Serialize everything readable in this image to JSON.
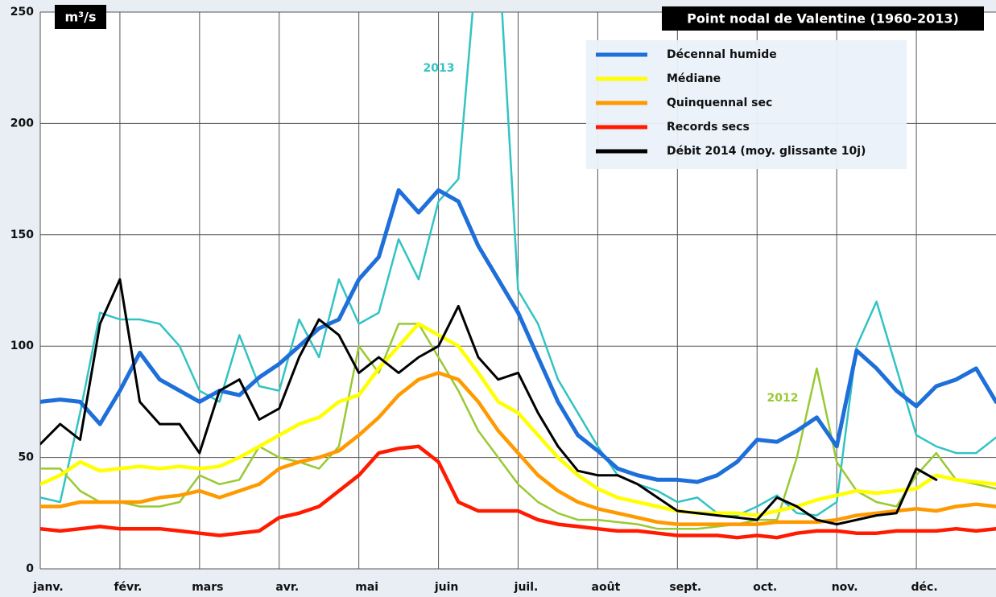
{
  "chart_data": {
    "type": "line",
    "title": "Point nodal de Valentine (1960-2013)",
    "y_label": "m³/s",
    "xlim": [
      0,
      12
    ],
    "xticks": [
      {
        "value": 0,
        "label": "janv."
      },
      {
        "value": 1,
        "label": "févr."
      },
      {
        "value": 2,
        "label": "mars"
      },
      {
        "value": 3,
        "label": "avr."
      },
      {
        "value": 4,
        "label": "mai"
      },
      {
        "value": 5,
        "label": "juin"
      },
      {
        "value": 6,
        "label": "juil."
      },
      {
        "value": 7,
        "label": "août"
      },
      {
        "value": 8,
        "label": "sept."
      },
      {
        "value": 9,
        "label": "oct."
      },
      {
        "value": 10,
        "label": "nov."
      },
      {
        "value": 11,
        "label": "déc."
      }
    ],
    "ylim": [
      0,
      250
    ],
    "yticks": [
      0,
      50,
      100,
      150,
      200,
      250
    ],
    "grid": true,
    "x": [
      0,
      0.25,
      0.5,
      0.75,
      1,
      1.25,
      1.5,
      1.75,
      2,
      2.25,
      2.5,
      2.75,
      3,
      3.25,
      3.5,
      3.75,
      4,
      4.25,
      4.5,
      4.75,
      5,
      5.25,
      5.5,
      5.75,
      6,
      6.25,
      6.5,
      6.75,
      7,
      7.25,
      7.5,
      7.75,
      8,
      8.25,
      8.5,
      8.75,
      9,
      9.25,
      9.5,
      9.75,
      10,
      10.25,
      10.5,
      10.75,
      11,
      11.25,
      11.5,
      11.75,
      12
    ],
    "series": [
      {
        "name": "2013",
        "color": "#33c3c3",
        "in_legend": false,
        "values": [
          32,
          30,
          70,
          115,
          112,
          112,
          110,
          100,
          80,
          75,
          105,
          82,
          80,
          112,
          95,
          130,
          110,
          115,
          148,
          130,
          165,
          175,
          280,
          280,
          125,
          110,
          85,
          70,
          55,
          42,
          38,
          35,
          30,
          32,
          25,
          24,
          28,
          33,
          25,
          24,
          30,
          100,
          120,
          90,
          60,
          55,
          52,
          52,
          59
        ]
      },
      {
        "name": "2012",
        "color": "#99c933",
        "in_legend": false,
        "values": [
          45,
          45,
          35,
          30,
          30,
          28,
          28,
          30,
          42,
          38,
          40,
          55,
          50,
          48,
          45,
          55,
          100,
          88,
          110,
          110,
          95,
          80,
          62,
          50,
          38,
          30,
          25,
          22,
          22,
          21,
          20,
          18,
          18,
          18,
          19,
          20,
          22,
          22,
          50,
          90,
          48,
          35,
          30,
          28,
          42,
          52,
          40,
          38,
          36
        ]
      },
      {
        "name": "Décennal humide",
        "color": "#1e6fd9",
        "in_legend": true,
        "values": [
          75,
          76,
          75,
          65,
          80,
          97,
          85,
          80,
          75,
          80,
          78,
          86,
          92,
          100,
          108,
          112,
          130,
          140,
          170,
          160,
          170,
          165,
          145,
          130,
          115,
          95,
          75,
          60,
          53,
          45,
          42,
          40,
          40,
          39,
          42,
          48,
          58,
          57,
          62,
          68,
          55,
          98,
          90,
          80,
          73,
          82,
          85,
          90,
          75
        ]
      },
      {
        "name": "Médiane",
        "color": "#ffff00",
        "in_legend": true,
        "values": [
          38,
          42,
          48,
          44,
          45,
          46,
          45,
          46,
          45,
          46,
          50,
          55,
          60,
          65,
          68,
          75,
          78,
          90,
          100,
          110,
          105,
          100,
          88,
          75,
          70,
          60,
          50,
          42,
          36,
          32,
          30,
          28,
          26,
          25,
          25,
          25,
          24,
          26,
          28,
          31,
          33,
          35,
          34,
          35,
          36,
          42,
          40,
          39,
          38
        ]
      },
      {
        "name": "Quinquennal sec",
        "color": "#ff9900",
        "in_legend": true,
        "values": [
          28,
          28,
          30,
          30,
          30,
          30,
          32,
          33,
          35,
          32,
          35,
          38,
          45,
          48,
          50,
          53,
          60,
          68,
          78,
          85,
          88,
          85,
          75,
          62,
          52,
          42,
          35,
          30,
          27,
          25,
          23,
          21,
          20,
          20,
          20,
          20,
          20,
          21,
          21,
          21,
          22,
          24,
          25,
          26,
          27,
          26,
          28,
          29,
          28
        ]
      },
      {
        "name": "Records secs",
        "color": "#ff1a00",
        "in_legend": true,
        "values": [
          18,
          17,
          18,
          19,
          18,
          18,
          18,
          17,
          16,
          15,
          16,
          17,
          23,
          25,
          28,
          35,
          42,
          52,
          54,
          55,
          48,
          30,
          26,
          26,
          26,
          22,
          20,
          19,
          18,
          17,
          17,
          16,
          15,
          15,
          15,
          14,
          15,
          14,
          16,
          17,
          17,
          16,
          16,
          17,
          17,
          17,
          18,
          17,
          18
        ]
      },
      {
        "name": "Débit 2014 (moy. glissante 10j)",
        "color": "#000000",
        "in_legend": true,
        "values": [
          56,
          65,
          58,
          110,
          130,
          75,
          65,
          65,
          52,
          80,
          85,
          67,
          72,
          95,
          112,
          105,
          88,
          95,
          88,
          95,
          100,
          118,
          95,
          85,
          88,
          70,
          55,
          44,
          42,
          42,
          38,
          32,
          26,
          25,
          24,
          23,
          22,
          32,
          28,
          22,
          20,
          22,
          24,
          25,
          45,
          40,
          null,
          null,
          null
        ]
      }
    ]
  }
}
